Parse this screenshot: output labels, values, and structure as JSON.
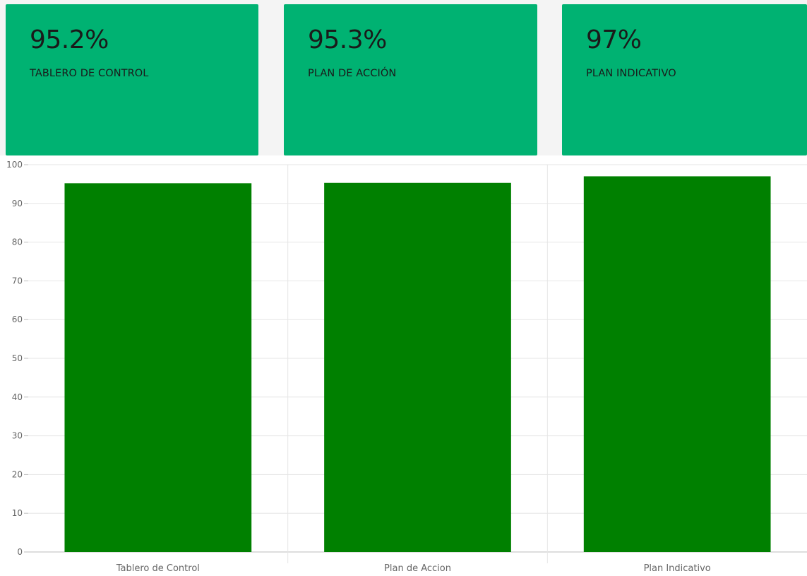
{
  "colors": {
    "card_bg": "#00b272",
    "bar": "#008000",
    "grid": "#e6e6e6",
    "axis_text": "#666666"
  },
  "cards": [
    {
      "value": "95.2%",
      "label": "TABLERO DE CONTROL"
    },
    {
      "value": "95.3%",
      "label": "PLAN DE ACCIÓN"
    },
    {
      "value": "97%",
      "label": "PLAN INDICATIVO"
    }
  ],
  "chart_data": {
    "type": "bar",
    "categories": [
      "Tablero de Control",
      "Plan de Accion",
      "Plan Indicativo"
    ],
    "series": [
      {
        "values": [
          95.2,
          95.3,
          97
        ]
      }
    ],
    "ylim": [
      0,
      100
    ],
    "yticks": [
      0,
      10,
      20,
      30,
      40,
      50,
      60,
      70,
      80,
      90,
      100
    ],
    "grid": true,
    "legend": "none"
  }
}
